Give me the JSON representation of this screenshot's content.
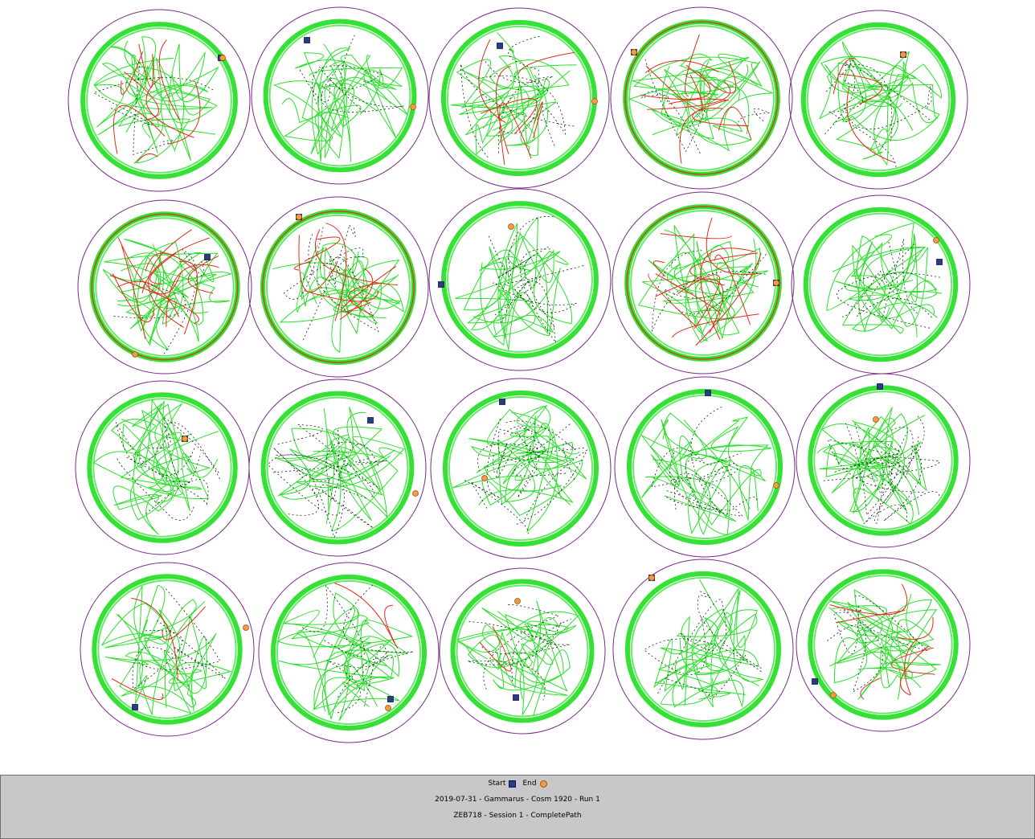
{
  "legend": {
    "start_label": "Start",
    "end_label": "End"
  },
  "info": {
    "line1": "2019-07-31 - Gammarus - Cosm 1920 - Run 1",
    "line2": "ZEB718 - Session 1 - CompletePath"
  },
  "colors": {
    "arena_outline": "#7a2a8a",
    "path_slow": "#2adf2a",
    "path_fast": "#e02a18",
    "path_stop": "#000000",
    "start_marker": "#2c3c84",
    "end_marker": "#f59a43",
    "footer_bg": "#c8c8c8"
  },
  "arenas": [
    {
      "id": "A1",
      "red": 8,
      "black": 0.2
    },
    {
      "id": "A2",
      "red": 0,
      "black": 0.3
    },
    {
      "id": "A3",
      "red": 6,
      "black": 0.4
    },
    {
      "id": "A4",
      "red": 10,
      "black": 0.3
    },
    {
      "id": "A5",
      "red": 3,
      "black": 0.4
    },
    {
      "id": "B1",
      "red": 12,
      "black": 0.2
    },
    {
      "id": "B2",
      "red": 9,
      "black": 0.4
    },
    {
      "id": "B3",
      "red": 0,
      "black": 0.5
    },
    {
      "id": "B4",
      "red": 12,
      "black": 0.2
    },
    {
      "id": "B5",
      "red": 0,
      "black": 0.4
    },
    {
      "id": "C1",
      "red": 0,
      "black": 0.5
    },
    {
      "id": "C2",
      "red": 0,
      "black": 0.7
    },
    {
      "id": "C3",
      "red": 0,
      "black": 0.9
    },
    {
      "id": "C4",
      "red": 0,
      "black": 0.6
    },
    {
      "id": "C5",
      "red": 0,
      "black": 0.9
    },
    {
      "id": "D1",
      "red": 3,
      "black": 0.3
    },
    {
      "id": "D2",
      "red": 2,
      "black": 0.4
    },
    {
      "id": "D3",
      "red": 1,
      "black": 0.4
    },
    {
      "id": "D4",
      "red": 0,
      "black": 0.4
    },
    {
      "id": "D5",
      "red": 7,
      "black": 0.3
    }
  ]
}
